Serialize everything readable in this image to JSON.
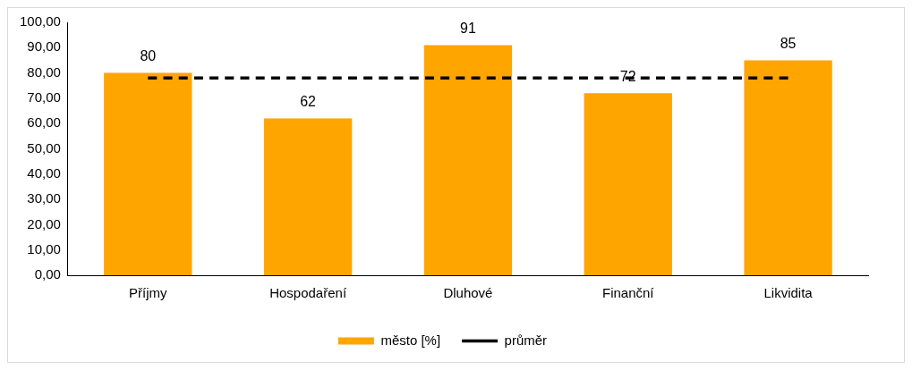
{
  "chart_data": {
    "type": "bar",
    "categories": [
      "Příjmy",
      "Hospodaření",
      "Dluhové",
      "Finanční",
      "Likvidita"
    ],
    "series": [
      {
        "name": "město [%]",
        "color": "#ffa500",
        "values": [
          80,
          62,
          91,
          72,
          85
        ],
        "value_labels": [
          "80",
          "62",
          "91",
          "72",
          "85"
        ]
      },
      {
        "name": "průměr",
        "type": "line",
        "color": "#000000",
        "line_style": "dashed",
        "marker": "none",
        "values": [
          78,
          78,
          78,
          78,
          78
        ]
      }
    ],
    "ylim": [
      0,
      100
    ],
    "yticks": [
      {
        "value": 0,
        "label": "0,00"
      },
      {
        "value": 10,
        "label": "10,00"
      },
      {
        "value": 20,
        "label": "20,00"
      },
      {
        "value": 30,
        "label": "30,00"
      },
      {
        "value": 40,
        "label": "40,00"
      },
      {
        "value": 50,
        "label": "50,00"
      },
      {
        "value": 60,
        "label": "60,00"
      },
      {
        "value": 70,
        "label": "70,00"
      },
      {
        "value": 80,
        "label": "80,00"
      },
      {
        "value": 90,
        "label": "90,00"
      },
      {
        "value": 100,
        "label": "100,00"
      }
    ],
    "grid": false,
    "legend": "bottom"
  }
}
